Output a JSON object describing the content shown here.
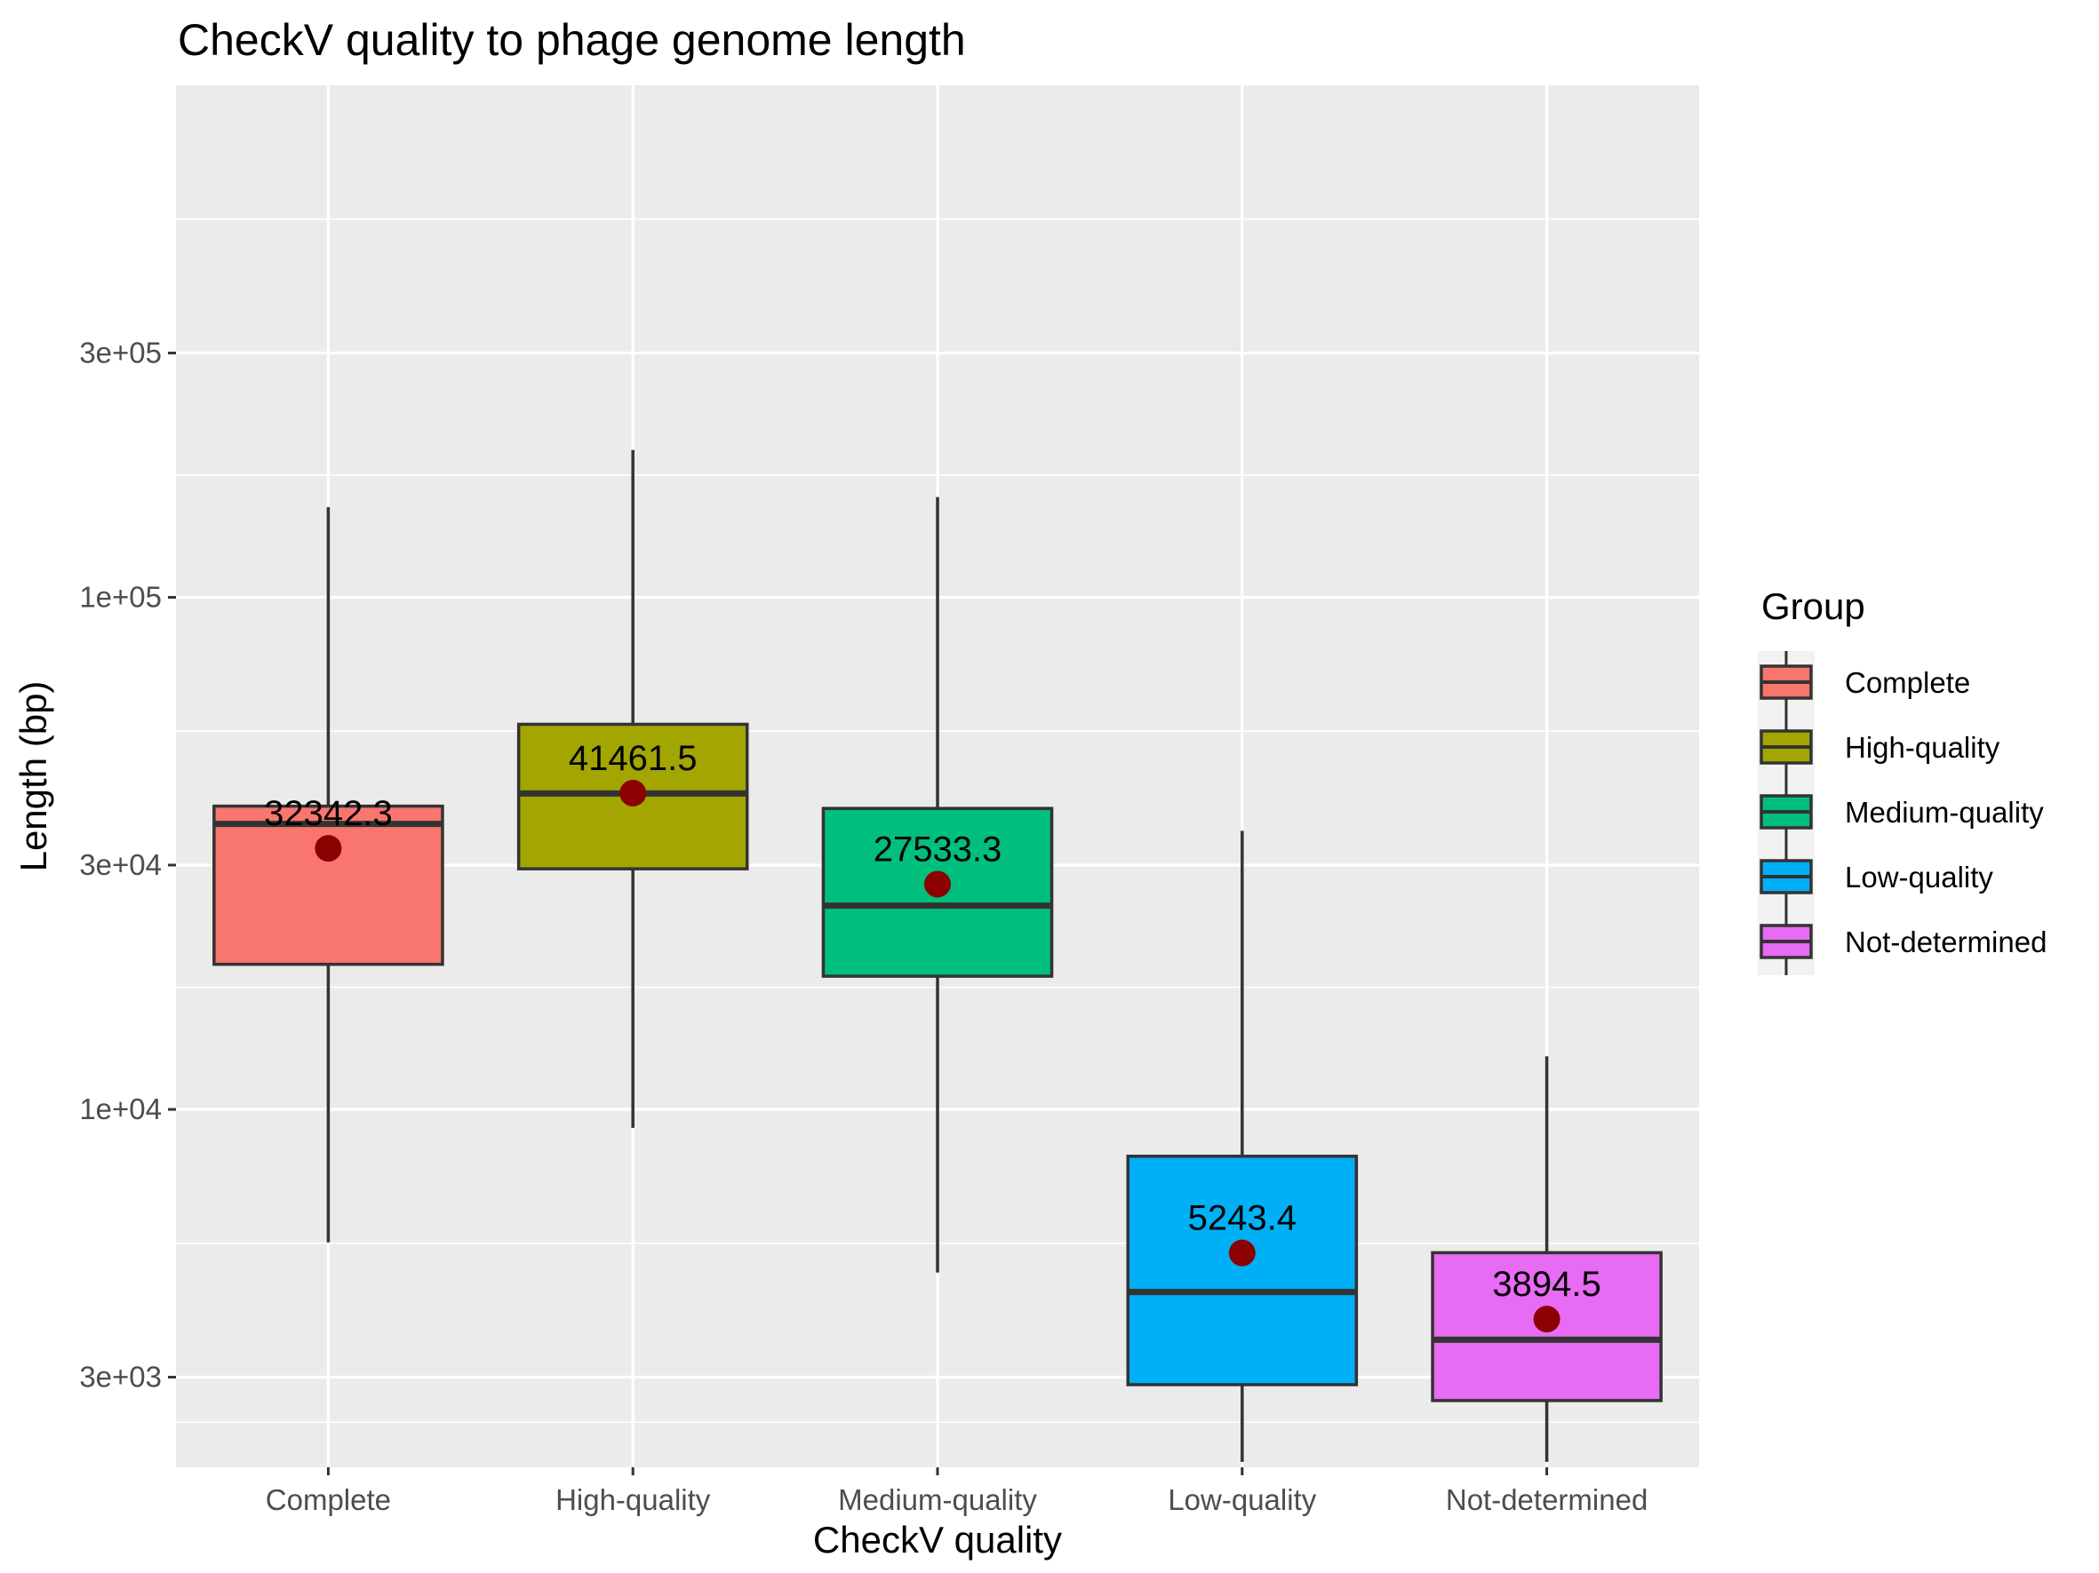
{
  "chart_data": {
    "type": "box",
    "title": "CheckV quality to phage genome length",
    "xlabel": "CheckV quality",
    "ylabel": "Length (bp)",
    "y_scale": "log10",
    "ylim": [
      2000,
      1000000
    ],
    "y_ticks": [
      {
        "value": 3000,
        "label": "3e+03"
      },
      {
        "value": 10000,
        "label": "1e+04"
      },
      {
        "value": 30000,
        "label": "3e+04"
      },
      {
        "value": 100000,
        "label": "1e+05"
      },
      {
        "value": 300000,
        "label": "3e+05"
      }
    ],
    "grid": true,
    "legend": {
      "title": "Group",
      "position": "right"
    },
    "categories": [
      "Complete",
      "High-quality",
      "Medium-quality",
      "Low-quality",
      "Not-determined"
    ],
    "series": [
      {
        "name": "Complete",
        "color": "#F8766D",
        "whisker_low": 5500,
        "q1": 19200,
        "median": 36100,
        "q3": 39100,
        "whisker_high": 150000,
        "mean": 32342.3,
        "mean_label": "32342.3"
      },
      {
        "name": "High-quality",
        "color": "#A3A500",
        "whisker_low": 9200,
        "q1": 29500,
        "median": 41400,
        "q3": 56500,
        "whisker_high": 194000,
        "mean": 41461.5,
        "mean_label": "41461.5"
      },
      {
        "name": "Medium-quality",
        "color": "#00BF7D",
        "whisker_low": 4800,
        "q1": 18200,
        "median": 25000,
        "q3": 38700,
        "whisker_high": 157000,
        "mean": 27533.3,
        "mean_label": "27533.3"
      },
      {
        "name": "Low-quality",
        "color": "#00B0F6",
        "whisker_low": 2050,
        "q1": 2900,
        "median": 4400,
        "q3": 8100,
        "whisker_high": 35000,
        "mean": 5243.4,
        "mean_label": "5243.4"
      },
      {
        "name": "Not-determined",
        "color": "#E76BF3",
        "whisker_low": 2050,
        "q1": 2700,
        "median": 3550,
        "q3": 5250,
        "whisker_high": 12700,
        "mean": 3894.5,
        "mean_label": "3894.5"
      }
    ],
    "mean_marker_color": "#8B0000"
  }
}
